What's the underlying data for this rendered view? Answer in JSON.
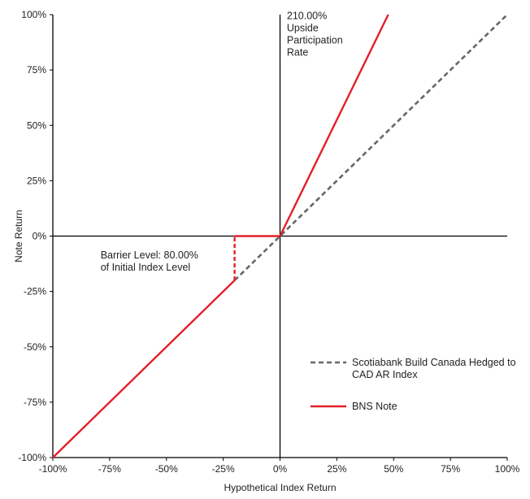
{
  "chart_data": {
    "type": "line",
    "title": "",
    "xlabel": "Hypothetical Index Return",
    "ylabel": "Note Return",
    "xlim": [
      -100,
      100
    ],
    "ylim": [
      -100,
      100
    ],
    "x_ticks": [
      -100,
      -75,
      -50,
      -25,
      0,
      25,
      50,
      75,
      100
    ],
    "y_ticks": [
      -100,
      -75,
      -50,
      -25,
      0,
      25,
      50,
      75,
      100
    ],
    "x_tick_labels": [
      "-100%",
      "-75%",
      "-50%",
      "-25%",
      "0%",
      "25%",
      "50%",
      "75%",
      "100%"
    ],
    "y_tick_labels": [
      "-100%",
      "-75%",
      "-50%",
      "-25%",
      "0%",
      "25%",
      "50%",
      "75%",
      "100%"
    ],
    "grid": false,
    "legend_position": "bottom-right",
    "series": [
      {
        "name": "Scotiabank Build Canada Hedged to CAD AR Index",
        "legend_lines": [
          "Scotiabank Build Canada Hedged to",
          "CAD AR Index"
        ],
        "color": "#666666",
        "style": "dashed",
        "points": [
          [
            -20,
            -20
          ],
          [
            100,
            100
          ]
        ]
      },
      {
        "name": "BNS Note",
        "legend_lines": [
          "BNS Note"
        ],
        "color": "#e3202a",
        "style": "solid",
        "points": [
          [
            -100,
            -100
          ],
          [
            -20,
            -20
          ],
          [
            -20,
            0
          ],
          [
            0,
            0
          ],
          [
            47.62,
            100
          ]
        ],
        "dashed_segment_index": 1
      }
    ],
    "annotations": [
      {
        "lines": [
          "210.00%",
          "Upside",
          "Participation",
          "Rate"
        ],
        "anchor": [
          3,
          98
        ]
      },
      {
        "lines": [
          "Barrier Level: 80.00%",
          "of Initial Index Level"
        ],
        "anchor": [
          -79,
          -10
        ]
      }
    ]
  }
}
